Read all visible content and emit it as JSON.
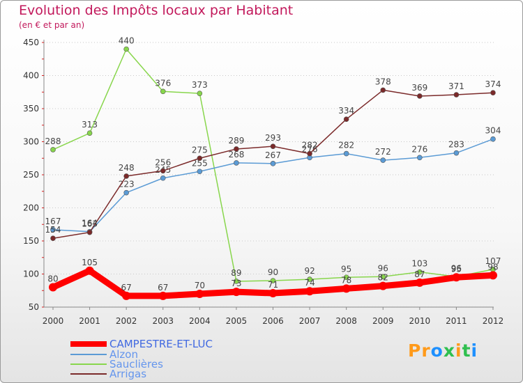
{
  "chart_data": {
    "type": "line",
    "title": "Evolution des Impôts locaux par Habitant",
    "subtitle": "(en € et par an)",
    "ylim": [
      50,
      450
    ],
    "yticks": [
      50,
      100,
      150,
      200,
      250,
      300,
      350,
      400,
      450
    ],
    "x": [
      "2000",
      "2001",
      "2002",
      "2003",
      "2004",
      "2005",
      "2006",
      "2007",
      "2008",
      "2009",
      "2010",
      "2011",
      "2012"
    ],
    "series": [
      {
        "name": "Sauclières",
        "color": "#88d64c",
        "values": [
          288,
          313,
          440,
          376,
          373,
          89,
          90,
          92,
          95,
          96,
          103,
          96,
          107
        ],
        "labels": [
          "288",
          "313",
          "440",
          "376",
          "373",
          "89",
          "90",
          "92",
          "95",
          "96",
          "103",
          "96",
          "107"
        ]
      },
      {
        "name": "Alzon",
        "color": "#5b9bd5",
        "values": [
          167,
          164,
          223,
          245,
          255,
          268,
          267,
          276,
          282,
          272,
          276,
          283,
          304
        ],
        "labels": [
          "167",
          "164",
          "223",
          "245",
          "255",
          "268",
          "267",
          "276",
          "282",
          "272",
          "276",
          "283",
          "304"
        ]
      },
      {
        "name": "Arrigas",
        "color": "#7b2a2a",
        "values": [
          154,
          163,
          248,
          256,
          275,
          289,
          293,
          282,
          334,
          378,
          369,
          371,
          374
        ],
        "labels": [
          "154",
          "163",
          "248",
          "256",
          "275",
          "289",
          "293",
          "282",
          "334",
          "378",
          "369",
          "371",
          "374"
        ]
      },
      {
        "name": "CAMPESTRE-ET-LUC",
        "color": "#ff0000",
        "values": [
          80,
          105,
          67,
          67,
          70,
          73,
          71,
          74,
          78,
          82,
          87,
          95,
          98
        ],
        "labels": [
          "80",
          "105",
          "67",
          "67",
          "70",
          "73",
          "71",
          "74",
          "78",
          "82",
          "87",
          "95",
          "98"
        ]
      }
    ],
    "legend": [
      {
        "name": "CAMPESTRE-ET-LUC",
        "color": "#ff0000",
        "text_color": "#4169e1"
      },
      {
        "name": "Alzon",
        "color": "#5b9bd5",
        "text_color": "#6495ed"
      },
      {
        "name": "Sauclières",
        "color": "#88d64c",
        "text_color": "#6495ed"
      },
      {
        "name": "Arrigas",
        "color": "#7b2a2a",
        "text_color": "#6495ed"
      }
    ]
  },
  "logo": {
    "text": "Proxiti",
    "colors": [
      "#ff9a1a",
      "#ff9a1a",
      "#1e90ff",
      "#2fbf4f",
      "#ff9a1a",
      "#2fbf4f",
      "#1e90ff"
    ]
  }
}
